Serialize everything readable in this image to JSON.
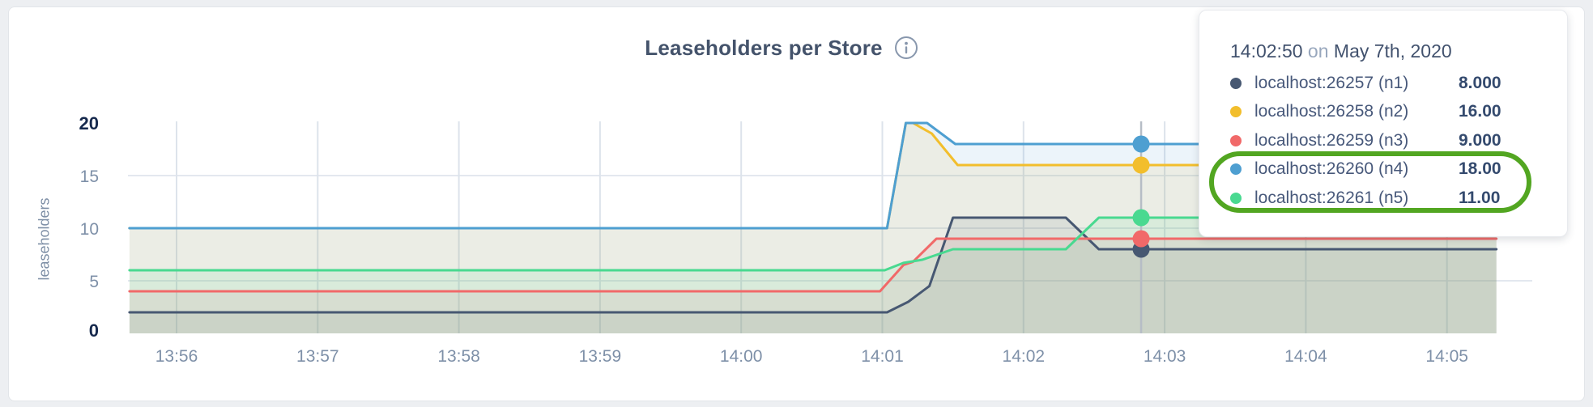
{
  "chart_data": {
    "type": "area",
    "title": "Leaseholders per Store",
    "xlabel": "",
    "ylabel": "leaseholders",
    "ylim": [
      0,
      20
    ],
    "y_ticks": [
      {
        "v": 0,
        "label": "0",
        "emphasis": true
      },
      {
        "v": 5,
        "label": "5",
        "emphasis": false
      },
      {
        "v": 10,
        "label": "10",
        "emphasis": false
      },
      {
        "v": 15,
        "label": "15",
        "emphasis": false
      },
      {
        "v": 20,
        "label": "20",
        "emphasis": true
      }
    ],
    "x_ticks": [
      {
        "t": 60,
        "label": "13:56"
      },
      {
        "t": 120,
        "label": "13:57"
      },
      {
        "t": 180,
        "label": "13:58"
      },
      {
        "t": 240,
        "label": "13:59"
      },
      {
        "t": 300,
        "label": "14:00"
      },
      {
        "t": 360,
        "label": "14:01"
      },
      {
        "t": 420,
        "label": "14:02"
      },
      {
        "t": 480,
        "label": "14:03"
      },
      {
        "t": 540,
        "label": "14:04"
      },
      {
        "t": 600,
        "label": "14:05"
      }
    ],
    "x_unit": "seconds after 13:55:00",
    "x_domain": [
      40,
      621
    ],
    "grid": true,
    "legend_position": "tooltip-overlay",
    "fill_opacity": 0.11,
    "series": [
      {
        "id": "n1",
        "name": "localhost:26257 (n1)",
        "color": "#475872",
        "points": [
          [
            40,
            2
          ],
          [
            362,
            2
          ],
          [
            371,
            3
          ],
          [
            380,
            4.5
          ],
          [
            390,
            11
          ],
          [
            438,
            11
          ],
          [
            452,
            8
          ],
          [
            621,
            8
          ]
        ]
      },
      {
        "id": "n2",
        "name": "localhost:26258 (n2)",
        "color": "#F2BE2C",
        "points": [
          [
            40,
            10
          ],
          [
            362,
            10
          ],
          [
            370,
            20
          ],
          [
            373,
            20
          ],
          [
            381,
            19
          ],
          [
            392,
            16
          ],
          [
            621,
            16
          ]
        ]
      },
      {
        "id": "n3",
        "name": "localhost:26259 (n3)",
        "color": "#F16969",
        "points": [
          [
            40,
            4
          ],
          [
            359,
            4
          ],
          [
            369,
            6.5
          ],
          [
            373,
            6.8
          ],
          [
            383,
            9
          ],
          [
            621,
            9
          ]
        ]
      },
      {
        "id": "n4",
        "name": "localhost:26260 (n4)",
        "color": "#4E9FD1",
        "points": [
          [
            40,
            10
          ],
          [
            362,
            10
          ],
          [
            370,
            20
          ],
          [
            379,
            20
          ],
          [
            391,
            18
          ],
          [
            621,
            18
          ]
        ]
      },
      {
        "id": "n5",
        "name": "localhost:26261 (n5)",
        "color": "#49D990",
        "points": [
          [
            40,
            6
          ],
          [
            361,
            6
          ],
          [
            369,
            6.7
          ],
          [
            377,
            7
          ],
          [
            390,
            8
          ],
          [
            438,
            8
          ],
          [
            452,
            11
          ],
          [
            621,
            11
          ]
        ]
      }
    ],
    "hover_marker": {
      "t": 470,
      "time_label": "14:02:50",
      "values": [
        {
          "series": "n1",
          "value": 8
        },
        {
          "series": "n2",
          "value": 16
        },
        {
          "series": "n3",
          "value": 9
        },
        {
          "series": "n4",
          "value": 18
        },
        {
          "series": "n5",
          "value": 11
        }
      ]
    }
  },
  "tooltip": {
    "time": "14:02:50",
    "conjunction": "on",
    "date": "May 7th, 2020",
    "rows": [
      {
        "label": "localhost:26257 (n1)",
        "value": "8.000",
        "color": "#475872"
      },
      {
        "label": "localhost:26258 (n2)",
        "value": "16.00",
        "color": "#F2BE2C"
      },
      {
        "label": "localhost:26259 (n3)",
        "value": "9.000",
        "color": "#F16969"
      },
      {
        "label": "localhost:26260 (n4)",
        "value": "18.00",
        "color": "#4E9FD1"
      },
      {
        "label": "localhost:26261 (n5)",
        "value": "11.00",
        "color": "#49D990"
      }
    ],
    "annotation": {
      "circled_rows": [
        "localhost:26260 (n4)",
        "localhost:26261 (n5)"
      ],
      "color": "#52a621"
    }
  },
  "colors": {
    "grid_vertical": "#dde3eb",
    "grid_horizontal": "#e3e8ef",
    "hover_line": "#b6bdc6",
    "tick_normal": "#7e90a8",
    "tick_emphasis": "#16294d",
    "title": "#44536b"
  }
}
